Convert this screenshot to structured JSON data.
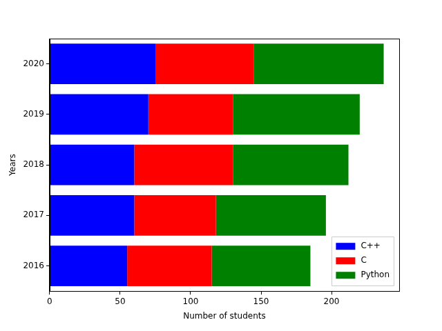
{
  "chart_data": {
    "type": "bar",
    "orientation": "horizontal",
    "stacked": true,
    "x_label": "Number of students",
    "y_label": "Years",
    "categories": [
      "2016",
      "2017",
      "2018",
      "2019",
      "2020"
    ],
    "series": [
      {
        "name": "C++",
        "color": "#0000ff",
        "values": [
          55,
          60,
          60,
          70,
          75
        ]
      },
      {
        "name": "C",
        "color": "#ff0000",
        "values": [
          60,
          58,
          70,
          60,
          70
        ]
      },
      {
        "name": "Python",
        "color": "#008000",
        "values": [
          70,
          78,
          82,
          90,
          92
        ]
      }
    ],
    "xlim": [
      0,
      248
    ],
    "xticks": [
      0,
      50,
      100,
      150,
      200
    ],
    "grid": false,
    "legend": "lower right"
  }
}
